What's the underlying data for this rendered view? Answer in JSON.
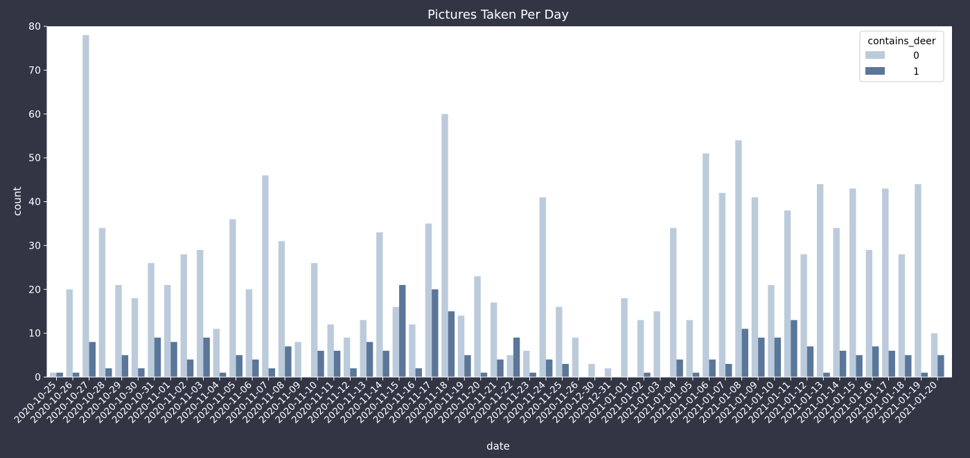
{
  "chart_data": {
    "type": "bar",
    "title": "Pictures Taken Per Day",
    "xlabel": "date",
    "ylabel": "count",
    "ylim": [
      0,
      80
    ],
    "yticks": [
      0,
      10,
      20,
      30,
      40,
      50,
      60,
      70,
      80
    ],
    "grid": false,
    "legend": {
      "title": "contains_deer",
      "placement": "top-right"
    },
    "categories": [
      "2020-10-25",
      "2020-10-26",
      "2020-10-27",
      "2020-10-28",
      "2020-10-29",
      "2020-10-30",
      "2020-10-31",
      "2020-11-01",
      "2020-11-02",
      "2020-11-03",
      "2020-11-04",
      "2020-11-05",
      "2020-11-06",
      "2020-11-07",
      "2020-11-08",
      "2020-11-09",
      "2020-11-10",
      "2020-11-11",
      "2020-11-12",
      "2020-11-13",
      "2020-11-14",
      "2020-11-15",
      "2020-11-16",
      "2020-11-17",
      "2020-11-18",
      "2020-11-19",
      "2020-11-20",
      "2020-11-21",
      "2020-11-22",
      "2020-11-23",
      "2020-11-24",
      "2020-11-25",
      "2020-11-26",
      "2020-12-30",
      "2020-12-31",
      "2021-01-01",
      "2021-01-02",
      "2021-01-03",
      "2021-01-04",
      "2021-01-05",
      "2021-01-06",
      "2021-01-07",
      "2021-01-08",
      "2021-01-09",
      "2021-01-10",
      "2021-01-11",
      "2021-01-12",
      "2021-01-13",
      "2021-01-14",
      "2021-01-15",
      "2021-01-16",
      "2021-01-17",
      "2021-01-18",
      "2021-01-19",
      "2021-01-20"
    ],
    "series": [
      {
        "name": "0",
        "color": "#bccbdb",
        "values": [
          1,
          20,
          78,
          34,
          21,
          18,
          26,
          21,
          28,
          29,
          11,
          36,
          20,
          46,
          31,
          8,
          26,
          12,
          9,
          13,
          33,
          16,
          12,
          35,
          60,
          14,
          23,
          17,
          5,
          6,
          41,
          16,
          9,
          3,
          2,
          18,
          13,
          15,
          34,
          13,
          51,
          42,
          54,
          41,
          21,
          38,
          28,
          44,
          34,
          43,
          29,
          43,
          28,
          44,
          10
        ]
      },
      {
        "name": "1",
        "color": "#5a7699",
        "values": [
          1,
          1,
          8,
          2,
          5,
          2,
          9,
          8,
          4,
          9,
          1,
          5,
          4,
          2,
          7,
          0,
          6,
          6,
          2,
          8,
          6,
          21,
          2,
          20,
          15,
          5,
          1,
          4,
          9,
          1,
          4,
          3,
          0,
          0,
          0,
          0,
          1,
          0,
          4,
          1,
          4,
          3,
          11,
          9,
          9,
          13,
          7,
          1,
          6,
          5,
          7,
          6,
          5,
          1,
          5
        ]
      }
    ]
  }
}
